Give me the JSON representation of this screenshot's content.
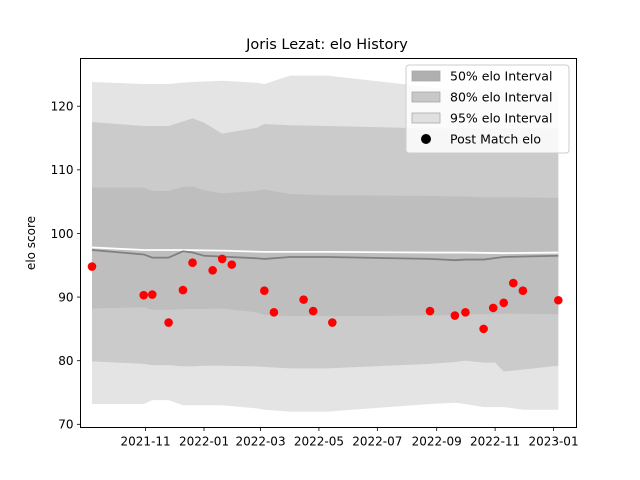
{
  "chart_data": {
    "type": "line",
    "title": "Joris Lezat: elo History",
    "xlabel": "",
    "ylabel": "elo score",
    "x_axis": {
      "type": "date",
      "range": [
        "2021-08-25",
        "2023-01-25"
      ]
    },
    "ylim": [
      69.5,
      127.5
    ],
    "xticks": [
      {
        "date": "2021-11-01",
        "label": "2021-11"
      },
      {
        "date": "2022-01-01",
        "label": "2022-01"
      },
      {
        "date": "2022-03-01",
        "label": "2022-03"
      },
      {
        "date": "2022-05-01",
        "label": "2022-05"
      },
      {
        "date": "2022-07-01",
        "label": "2022-07"
      },
      {
        "date": "2022-09-01",
        "label": "2022-09"
      },
      {
        "date": "2022-11-01",
        "label": "2022-11"
      },
      {
        "date": "2023-01-01",
        "label": "2023-01"
      }
    ],
    "yticks": [
      70,
      80,
      90,
      100,
      110,
      120
    ],
    "grid": false,
    "legend_position": "top-right",
    "legend": [
      {
        "label": "50% elo Interval",
        "kind": "patch",
        "color": "#808080",
        "alpha": 0.6
      },
      {
        "label": "80% elo Interval",
        "kind": "patch",
        "color": "#a0a0a0",
        "alpha": 0.5
      },
      {
        "label": "95% elo Interval",
        "kind": "patch",
        "color": "#c8c8c8",
        "alpha": 0.5
      },
      {
        "label": "Post Match elo",
        "kind": "marker",
        "color": "#000000"
      }
    ],
    "bands": [
      {
        "name": "95% elo Interval",
        "color": "#e4e4e4",
        "dates": [
          "2021-09-06",
          "2021-10-30",
          "2021-11-08",
          "2021-11-25",
          "2021-12-10",
          "2021-12-20",
          "2022-01-20",
          "2022-02-25",
          "2022-03-05",
          "2022-04-01",
          "2022-05-10",
          "2022-08-25",
          "2022-09-20",
          "2022-10-01",
          "2022-10-20",
          "2022-11-10",
          "2022-12-01",
          "2023-01-06"
        ],
        "upper": [
          123.8,
          123.5,
          123.5,
          123.5,
          123.7,
          123.8,
          124.0,
          123.7,
          123.5,
          124.8,
          124.8,
          123.0,
          122.5,
          122.5,
          122.5,
          122.5,
          122.5,
          122.5
        ],
        "lower": [
          73.2,
          73.2,
          73.8,
          73.8,
          73.0,
          73.0,
          73.0,
          72.5,
          72.3,
          72.0,
          72.0,
          73.2,
          73.4,
          73.2,
          72.7,
          72.7,
          72.3,
          72.3
        ]
      },
      {
        "name": "80% elo Interval",
        "color": "#cbcbcb",
        "dates": [
          "2021-09-06",
          "2021-10-30",
          "2021-11-08",
          "2021-11-25",
          "2021-12-10",
          "2021-12-20",
          "2022-01-01",
          "2022-01-20",
          "2022-02-25",
          "2022-03-05",
          "2022-04-01",
          "2022-05-10",
          "2022-08-25",
          "2022-09-20",
          "2022-10-01",
          "2022-10-20",
          "2022-11-01",
          "2022-11-10",
          "2023-01-06"
        ],
        "upper": [
          117.5,
          116.9,
          116.9,
          116.9,
          117.6,
          118.1,
          117.4,
          115.7,
          116.6,
          117.2,
          117.0,
          116.9,
          116.5,
          116.5,
          116.5,
          116.5,
          116.5,
          116.5,
          116.5
        ],
        "lower": [
          79.9,
          79.5,
          79.3,
          79.3,
          79.1,
          79.1,
          79.2,
          79.2,
          79.1,
          79.0,
          78.8,
          78.8,
          79.5,
          79.8,
          80.0,
          79.7,
          79.7,
          78.3,
          79.2
        ]
      },
      {
        "name": "50% elo Interval",
        "color": "#bebebe",
        "dates": [
          "2021-09-06",
          "2021-10-30",
          "2021-11-08",
          "2021-11-25",
          "2021-12-10",
          "2021-12-20",
          "2022-01-01",
          "2022-01-20",
          "2022-02-25",
          "2022-03-05",
          "2022-04-01",
          "2022-05-10",
          "2022-08-25",
          "2022-09-20",
          "2022-10-01",
          "2022-10-20",
          "2022-11-10",
          "2023-01-06"
        ],
        "upper": [
          107.2,
          107.2,
          106.7,
          106.7,
          107.3,
          107.4,
          106.8,
          106.3,
          106.7,
          106.9,
          106.2,
          106.0,
          105.9,
          105.8,
          105.8,
          105.7,
          105.7,
          105.6
        ],
        "lower": [
          88.2,
          88.4,
          88.0,
          88.0,
          88.1,
          88.1,
          88.1,
          88.2,
          87.6,
          87.2,
          87.0,
          87.0,
          87.1,
          87.2,
          87.3,
          87.3,
          87.4,
          87.3
        ]
      }
    ],
    "series": [
      {
        "name": "",
        "kind": "line",
        "color": "#ffffff",
        "dates": [
          "2021-09-06",
          "2021-10-30",
          "2021-12-10",
          "2022-01-20",
          "2022-03-05",
          "2022-05-10",
          "2022-08-25",
          "2022-10-01",
          "2022-11-10",
          "2023-01-06"
        ],
        "values": [
          97.8,
          97.4,
          97.4,
          97.3,
          97.1,
          97.1,
          97.0,
          97.0,
          96.9,
          97.0
        ]
      },
      {
        "name": "",
        "kind": "line",
        "color": "#808080",
        "dates": [
          "2021-09-06",
          "2021-10-30",
          "2021-11-08",
          "2021-11-25",
          "2021-12-10",
          "2021-12-20",
          "2022-01-01",
          "2022-02-25",
          "2022-03-05",
          "2022-04-01",
          "2022-05-10",
          "2022-08-25",
          "2022-09-20",
          "2022-10-01",
          "2022-10-20",
          "2022-11-10",
          "2023-01-06"
        ],
        "values": [
          97.4,
          96.7,
          96.2,
          96.2,
          97.2,
          97.0,
          96.5,
          96.1,
          96.0,
          96.3,
          96.3,
          96.0,
          95.8,
          95.9,
          95.9,
          96.3,
          96.5
        ]
      },
      {
        "name": "Post Match elo",
        "kind": "scatter",
        "color": "#ff0000",
        "dates": [
          "2021-09-06",
          "2021-10-30",
          "2021-11-08",
          "2021-11-25",
          "2021-12-10",
          "2021-12-20",
          "2022-01-10",
          "2022-01-20",
          "2022-01-30",
          "2022-03-05",
          "2022-03-15",
          "2022-04-15",
          "2022-04-25",
          "2022-05-15",
          "2022-08-25",
          "2022-09-20",
          "2022-10-01",
          "2022-10-20",
          "2022-10-30",
          "2022-11-10",
          "2022-11-20",
          "2022-11-30",
          "2023-01-06"
        ],
        "values": [
          94.8,
          90.3,
          90.4,
          86.0,
          91.1,
          95.4,
          94.2,
          96.0,
          95.1,
          91.0,
          87.6,
          89.6,
          87.8,
          86.0,
          87.8,
          87.1,
          87.6,
          85.0,
          88.3,
          89.1,
          92.2,
          91.0,
          89.5
        ]
      }
    ]
  }
}
